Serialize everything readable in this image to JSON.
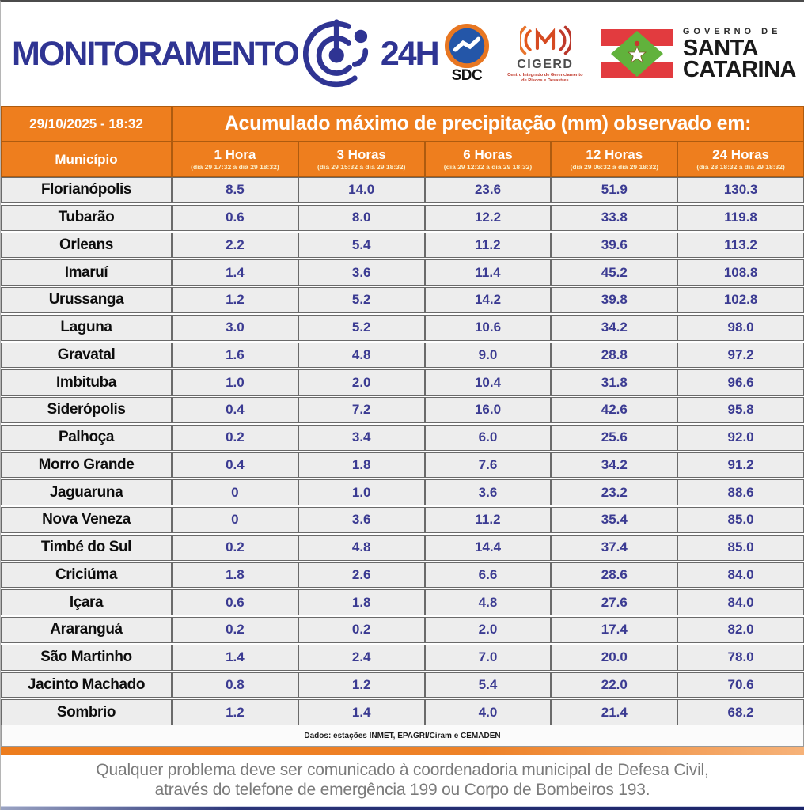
{
  "header": {
    "brand": {
      "title": "MONITORAMENTO",
      "suffix": "24H"
    },
    "logos": {
      "sdc_label": "SDC",
      "cigerd_label": "CIGERD",
      "cigerd_sub": "Centro Integrado de Gerenciamento de Riscos e Desastres",
      "governo_de": "GOVERNO DE",
      "santa": "SANTA",
      "catarina": "CATARINA"
    }
  },
  "table": {
    "timestamp": "29/10/2025 - 18:32",
    "title": "Acumulado máximo de precipitação (mm) observado em:",
    "municipality_header": "Município",
    "columns": [
      {
        "label": "1 Hora",
        "range": "(dia 29 17:32 a dia 29 18:32)"
      },
      {
        "label": "3 Horas",
        "range": "(dia 29 15:32 a dia 29 18:32)"
      },
      {
        "label": "6 Horas",
        "range": "(dia 29 12:32 a dia 29 18:32)"
      },
      {
        "label": "12 Horas",
        "range": "(dia 29 06:32 a dia 29 18:32)"
      },
      {
        "label": "24 Horas",
        "range": "(dia 28 18:32 a dia 29 18:32)"
      }
    ],
    "rows": [
      {
        "municipality": "Florianópolis",
        "values": [
          "8.5",
          "14.0",
          "23.6",
          "51.9",
          "130.3"
        ]
      },
      {
        "municipality": "Tubarão",
        "values": [
          "0.6",
          "8.0",
          "12.2",
          "33.8",
          "119.8"
        ]
      },
      {
        "municipality": "Orleans",
        "values": [
          "2.2",
          "5.4",
          "11.2",
          "39.6",
          "113.2"
        ]
      },
      {
        "municipality": "Imaruí",
        "values": [
          "1.4",
          "3.6",
          "11.4",
          "45.2",
          "108.8"
        ]
      },
      {
        "municipality": "Urussanga",
        "values": [
          "1.2",
          "5.2",
          "14.2",
          "39.8",
          "102.8"
        ]
      },
      {
        "municipality": "Laguna",
        "values": [
          "3.0",
          "5.2",
          "10.6",
          "34.2",
          "98.0"
        ]
      },
      {
        "municipality": "Gravatal",
        "values": [
          "1.6",
          "4.8",
          "9.0",
          "28.8",
          "97.2"
        ]
      },
      {
        "municipality": "Imbituba",
        "values": [
          "1.0",
          "2.0",
          "10.4",
          "31.8",
          "96.6"
        ]
      },
      {
        "municipality": "Siderópolis",
        "values": [
          "0.4",
          "7.2",
          "16.0",
          "42.6",
          "95.8"
        ]
      },
      {
        "municipality": "Palhoça",
        "values": [
          "0.2",
          "3.4",
          "6.0",
          "25.6",
          "92.0"
        ]
      },
      {
        "municipality": "Morro Grande",
        "values": [
          "0.4",
          "1.8",
          "7.6",
          "34.2",
          "91.2"
        ]
      },
      {
        "municipality": "Jaguaruna",
        "values": [
          "0",
          "1.0",
          "3.6",
          "23.2",
          "88.6"
        ]
      },
      {
        "municipality": "Nova Veneza",
        "values": [
          "0",
          "3.6",
          "11.2",
          "35.4",
          "85.0"
        ]
      },
      {
        "municipality": "Timbé do Sul",
        "values": [
          "0.2",
          "4.8",
          "14.4",
          "37.4",
          "85.0"
        ]
      },
      {
        "municipality": "Criciúma",
        "values": [
          "1.8",
          "2.6",
          "6.6",
          "28.6",
          "84.0"
        ]
      },
      {
        "municipality": "Içara",
        "values": [
          "0.6",
          "1.8",
          "4.8",
          "27.6",
          "84.0"
        ]
      },
      {
        "municipality": "Araranguá",
        "values": [
          "0.2",
          "0.2",
          "2.0",
          "17.4",
          "82.0"
        ]
      },
      {
        "municipality": "São Martinho",
        "values": [
          "1.4",
          "2.4",
          "7.0",
          "20.0",
          "78.0"
        ]
      },
      {
        "municipality": "Jacinto Machado",
        "values": [
          "0.8",
          "1.2",
          "5.4",
          "22.0",
          "70.6"
        ]
      },
      {
        "municipality": "Sombrio",
        "values": [
          "1.2",
          "1.4",
          "4.0",
          "21.4",
          "68.2"
        ]
      }
    ],
    "source": "Dados: estações INMET, EPAGRI/Ciram e CEMADEN"
  },
  "footer": {
    "line1": "Qualquer problema deve ser comunicado à coordenadoria municipal de Defesa Civil,",
    "line2": "através do telefone de emergência 199 ou Corpo de Bombeiros 193."
  },
  "colors": {
    "header_orange": "#EE7E1E",
    "brand_blue": "#2F3493",
    "value_blue": "#3B3B92",
    "flag_red": "#E23B3F",
    "flag_green": "#61B23C",
    "bottom_navy": "#1B2468",
    "cell_gray": "#EDEDED"
  },
  "chart_data": {
    "type": "table",
    "title": "Acumulado máximo de precipitação (mm) observado em:",
    "categories": [
      "1 Hora",
      "3 Horas",
      "6 Horas",
      "12 Horas",
      "24 Horas"
    ],
    "series": [
      {
        "name": "Florianópolis",
        "values": [
          8.5,
          14.0,
          23.6,
          51.9,
          130.3
        ]
      },
      {
        "name": "Tubarão",
        "values": [
          0.6,
          8.0,
          12.2,
          33.8,
          119.8
        ]
      },
      {
        "name": "Orleans",
        "values": [
          2.2,
          5.4,
          11.2,
          39.6,
          113.2
        ]
      },
      {
        "name": "Imaruí",
        "values": [
          1.4,
          3.6,
          11.4,
          45.2,
          108.8
        ]
      },
      {
        "name": "Urussanga",
        "values": [
          1.2,
          5.2,
          14.2,
          39.8,
          102.8
        ]
      },
      {
        "name": "Laguna",
        "values": [
          3.0,
          5.2,
          10.6,
          34.2,
          98.0
        ]
      },
      {
        "name": "Gravatal",
        "values": [
          1.6,
          4.8,
          9.0,
          28.8,
          97.2
        ]
      },
      {
        "name": "Imbituba",
        "values": [
          1.0,
          2.0,
          10.4,
          31.8,
          96.6
        ]
      },
      {
        "name": "Siderópolis",
        "values": [
          0.4,
          7.2,
          16.0,
          42.6,
          95.8
        ]
      },
      {
        "name": "Palhoça",
        "values": [
          0.2,
          3.4,
          6.0,
          25.6,
          92.0
        ]
      },
      {
        "name": "Morro Grande",
        "values": [
          0.4,
          1.8,
          7.6,
          34.2,
          91.2
        ]
      },
      {
        "name": "Jaguaruna",
        "values": [
          0,
          1.0,
          3.6,
          23.2,
          88.6
        ]
      },
      {
        "name": "Nova Veneza",
        "values": [
          0,
          3.6,
          11.2,
          35.4,
          85.0
        ]
      },
      {
        "name": "Timbé do Sul",
        "values": [
          0.2,
          4.8,
          14.4,
          37.4,
          85.0
        ]
      },
      {
        "name": "Criciúma",
        "values": [
          1.8,
          2.6,
          6.6,
          28.6,
          84.0
        ]
      },
      {
        "name": "Içara",
        "values": [
          0.6,
          1.8,
          4.8,
          27.6,
          84.0
        ]
      },
      {
        "name": "Araranguá",
        "values": [
          0.2,
          0.2,
          2.0,
          17.4,
          82.0
        ]
      },
      {
        "name": "São Martinho",
        "values": [
          1.4,
          2.4,
          7.0,
          20.0,
          78.0
        ]
      },
      {
        "name": "Jacinto Machado",
        "values": [
          0.8,
          1.2,
          5.4,
          22.0,
          70.6
        ]
      },
      {
        "name": "Sombrio",
        "values": [
          1.2,
          1.4,
          4.0,
          21.4,
          68.2
        ]
      }
    ]
  }
}
